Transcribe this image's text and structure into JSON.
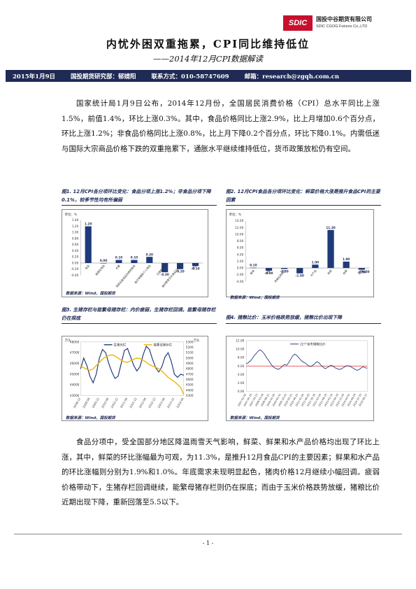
{
  "header": {
    "logo_mark": "SDIC",
    "logo_cn": "国投中谷期货有限公司",
    "logo_en": "SDIC CGOG Futures Co.,LTD"
  },
  "title": "内忧外困双重拖累，CPI同比维持低位",
  "subtitle": "——2014年12月CPI数据解读",
  "infobar": {
    "date": "2015年1月9日",
    "researcher": "国投期货研究部：郁婧阳",
    "contact": "联系方式：010-58747609",
    "email": "邮箱：research@zgqh.com.cn"
  },
  "paragraph1": "国家统计局1月9日公布，2014年12月份，全国居民消费价格（CPI）总水平同比上涨1.5%，前值1.4%，环比上涨0.3%。其中，食品价格同比上涨2.9%，比上月增加0.6个百分点，环比上涨1.2%；非食品价格同比上涨0.8%，比上月下降0.2个百分点，环比下降0.1%。内需低迷与国际大宗商品价格下跌的双重拖累下，通胀水平继续维持低位，货币政策放松仍有空间。",
  "paragraph2": "食品分项中，受全国部分地区降温雨雪天气影响，鲜菜、鲜果和水产品价格均出现了环比上涨，其中，鲜菜的环比涨幅最为可观，为11.3%，是推升12月食品CPI的主要因素；鲜果和水产品的环比涨幅则分别为1.9%和1.0%。年底需求未现明显起色，猪肉价格12月继续小幅回调。疲弱价格带动下，生猪存栏回调继续，能繁母猪存栏则仍在探底；而由于玉米价格跌势放缓，猪粮比价近期出现下降，重新回落至5.5以下。",
  "figures": {
    "fig1": {
      "title": "图1. 12月CPI各分项环比变化：食品分项上涨1.2%；非食品分项下降0.1%，较季节性均有所偏弱",
      "source": "数据来源：Wind，国投期货"
    },
    "fig2": {
      "title": "图2. 12月CPI食品各分项环比变化：鲜菜价格大涨是推升食品CPI的主要因素",
      "source": "数据来源：Wind，国投期货"
    },
    "fig3": {
      "title": "图3. 生猪存栏与能繁母猪存栏：内价疲弱，生猪存栏回调，能繁母猪存栏仍在探底",
      "source": "数据来源：Wind，国投期货"
    },
    "fig4": {
      "title": "图4. 猪粮比价：玉米价格跌势放缓，猪粮比价出现下降",
      "source": "数据来源：Wind，国投期货"
    }
  },
  "chart_data": [
    {
      "type": "bar",
      "ylabel": "单位：%",
      "categories": [
        "食品",
        "烟酒及用品",
        "衣着",
        "家庭设备用品及维修服务",
        "医疗保健和个人用品",
        "交通和通信",
        "娱乐教育文化用品及服务",
        "居住"
      ],
      "values": [
        1.2,
        0.0,
        0.1,
        0.1,
        0.2,
        -0.3,
        -0.2,
        -0.1
      ],
      "value_labels": [
        "1.20",
        "0.00",
        "0.10",
        "0.10",
        "0.20",
        "-0.30",
        "-0.20",
        "-0.10"
      ],
      "ylim": [
        -0.4,
        1.4
      ],
      "yticks": [
        "1.40",
        "1.20",
        "1.00",
        "0.80",
        "0.60",
        "0.40",
        "0.20",
        "0.00",
        "-0.20",
        "-0.40"
      ],
      "color": "#1f3a7a"
    },
    {
      "type": "bar",
      "ylabel": "单位：%",
      "categories": [
        "粮食",
        "油脂",
        "肉禽及其制品",
        "蛋",
        "水产品",
        "鲜菜",
        "鲜果",
        "奶类"
      ],
      "values": [
        0.1,
        -0.8,
        -0.3,
        -1.6,
        1.0,
        11.3,
        1.9,
        -0.5
      ],
      "value_labels": [
        "0.10",
        "-0.80",
        "-0.30",
        "-1.60",
        "1.00",
        "11.30",
        "1.90",
        "-0.50"
      ],
      "extra_label": "-0.50",
      "ylim": [
        -4,
        14
      ],
      "yticks": [
        "14.00",
        "12.00",
        "10.00",
        "8.00",
        "6.00",
        "4.00",
        "2.00",
        "0.00",
        "-2.00",
        "-4.00"
      ],
      "color": "#1f3a7a"
    },
    {
      "type": "line",
      "ylabel_left": "万头",
      "ylabel_right": "万头",
      "series": [
        {
          "name": "生猪存栏",
          "axis": "left",
          "color": "#1f3a7a",
          "values": [
            45500,
            46500,
            45800,
            44800,
            44200,
            45000,
            46500,
            47300,
            47000,
            46000,
            45200,
            44600,
            44800,
            46000,
            47200,
            47400,
            46600,
            45800,
            45300,
            45700,
            46800,
            47600,
            47300,
            46400,
            45600,
            45200,
            45700,
            46600,
            47000,
            46200,
            45000,
            44700,
            45000,
            44900
          ]
        },
        {
          "name": "能繁母猪存栏",
          "axis": "right",
          "color": "#f0b400",
          "values": [
            4850,
            4820,
            4790,
            4770,
            4800,
            4860,
            4920,
            4980,
            5020,
            5050,
            5060,
            5040,
            5000,
            4960,
            4930,
            4920,
            4950,
            4980,
            5000,
            4990,
            4960,
            4920,
            4880,
            4850,
            4830,
            4800,
            4760,
            4700,
            4640,
            4600,
            4560,
            4510,
            4450,
            4320
          ]
        }
      ],
      "x_tick_labels": [
        "2008-12",
        "2009-06",
        "2009-12",
        "2010-06",
        "2010-12",
        "2011-06",
        "2011-12",
        "2012-06",
        "2012-12",
        "2013-06",
        "2013-12",
        "2014-06"
      ],
      "ylim_left": [
        43000,
        48000
      ],
      "yticks_left": [
        "48000",
        "47000",
        "46000",
        "45000",
        "44000",
        "43000"
      ],
      "ylim_right": [
        4300,
        5300
      ],
      "yticks_right": [
        "5300",
        "5200",
        "5100",
        "5000",
        "4900",
        "4800",
        "4700",
        "4600",
        "4500",
        "4400",
        "4300"
      ]
    },
    {
      "type": "line",
      "series": [
        {
          "name": "22个省市猪粮比价",
          "color": "#1f3a7a",
          "values": [
            6.5,
            6.8,
            7.2,
            7.8,
            8.5,
            9.0,
            9.6,
            9.8,
            9.4,
            8.8,
            8.0,
            7.4,
            6.6,
            6.0,
            5.6,
            5.4,
            5.2,
            5.6,
            6.0,
            6.4,
            6.2,
            6.8,
            7.6,
            8.4,
            8.8,
            8.5,
            8.0,
            7.4,
            7.0,
            6.8,
            6.4,
            6.0,
            5.9,
            6.2,
            6.6,
            7.0,
            6.8,
            6.2,
            5.8,
            5.4,
            5.6,
            5.9,
            6.2,
            6.0,
            5.6,
            5.4,
            5.2,
            5.3,
            5.6,
            5.9,
            6.1,
            6.0,
            5.8,
            5.5,
            5.2,
            5.0,
            5.2,
            5.6,
            5.8,
            5.6,
            5.5
          ]
        }
      ],
      "reference_line": {
        "value": 6.0,
        "color": "#e05050"
      },
      "x_tick_labels": [
        "2007-01-05",
        "2007-05-29",
        "2007-10-23",
        "2008-03-18",
        "2008-08-11",
        "2009-01-05",
        "2009-05-31",
        "2009-10-25",
        "2010-03-21",
        "2010-08-15",
        "2011-01-09",
        "2011-06-05",
        "2011-10-30",
        "2012-03-26",
        "2012-08-20",
        "2013-01-14",
        "2013-06-10",
        "2013-11-04",
        "2014-04-01",
        "2014-08-26",
        "2014-12-19",
        "2014-06-17"
      ],
      "ylim": [
        0,
        12
      ],
      "yticks": [
        "12.00",
        "10.00",
        "8.00",
        "6.00",
        "4.00",
        "2.00",
        "0.00"
      ]
    }
  ],
  "page_number": "- 1 -"
}
